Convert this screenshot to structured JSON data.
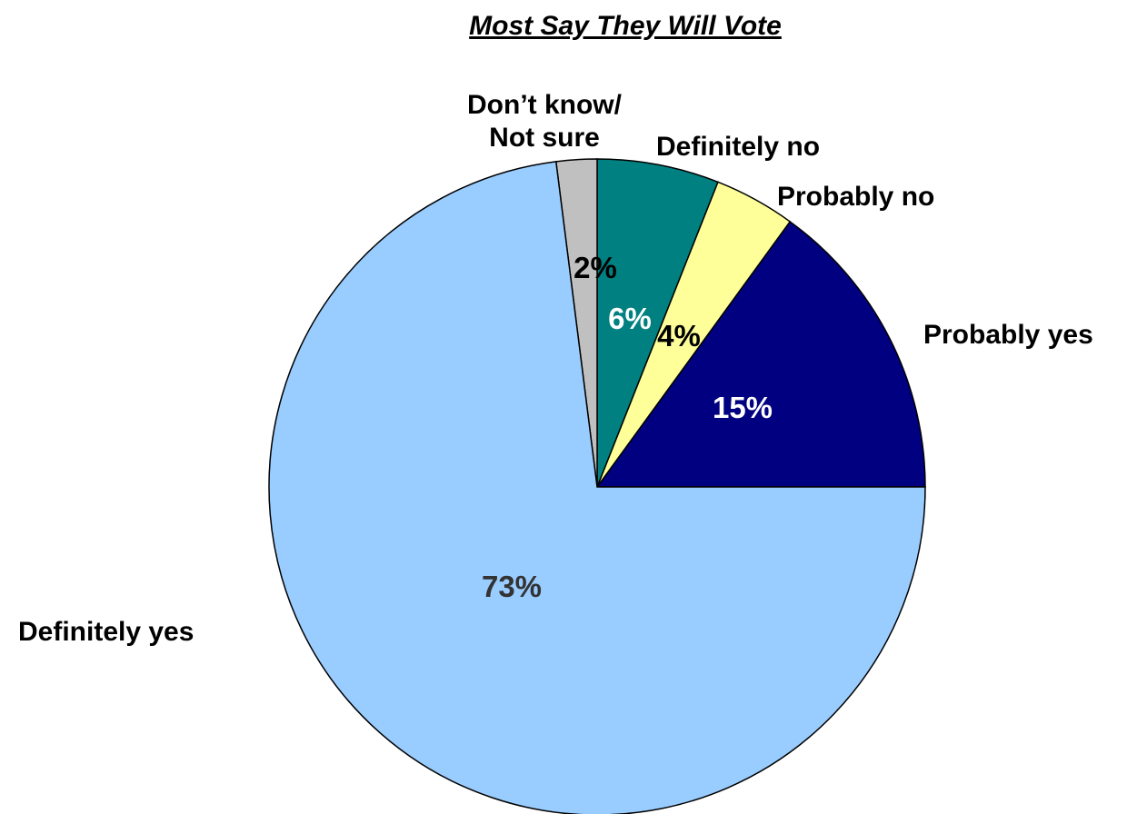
{
  "chart_data": {
    "type": "pie",
    "title": "Most Say They Will Vote",
    "categories": [
      "Probably yes",
      "Definitely yes",
      "Don’t know/ Not sure",
      "Definitely no",
      "Probably no"
    ],
    "values": [
      15,
      73,
      2,
      6,
      4
    ],
    "value_labels": [
      "15%",
      "73%",
      "2%",
      "6%",
      "4%"
    ],
    "series": [
      {
        "name": "",
        "values": [
          15,
          73,
          2,
          6,
          4
        ]
      }
    ],
    "slices": [
      {
        "label_lines": [
          "Probably yes"
        ],
        "value": 15,
        "value_label": "15%",
        "color": "#000080",
        "value_label_color": "#ffffff"
      },
      {
        "label_lines": [
          "Definitely yes"
        ],
        "value": 73,
        "value_label": "73%",
        "color": "#99ccff",
        "value_label_color": "#333333"
      },
      {
        "label_lines": [
          "Don’t know/",
          "Not sure"
        ],
        "value": 2,
        "value_label": "2%",
        "color": "#c0c0c0",
        "value_label_color": "#000000"
      },
      {
        "label_lines": [
          "Definitely no"
        ],
        "value": 6,
        "value_label": "6%",
        "color": "#008080",
        "value_label_color": "#ffffff"
      },
      {
        "label_lines": [
          "Probably no"
        ],
        "value": 4,
        "value_label": "4%",
        "color": "#ffff99",
        "value_label_color": "#000000"
      }
    ],
    "start_angle_deg": 0,
    "direction": "clockwise",
    "legend": "none"
  }
}
